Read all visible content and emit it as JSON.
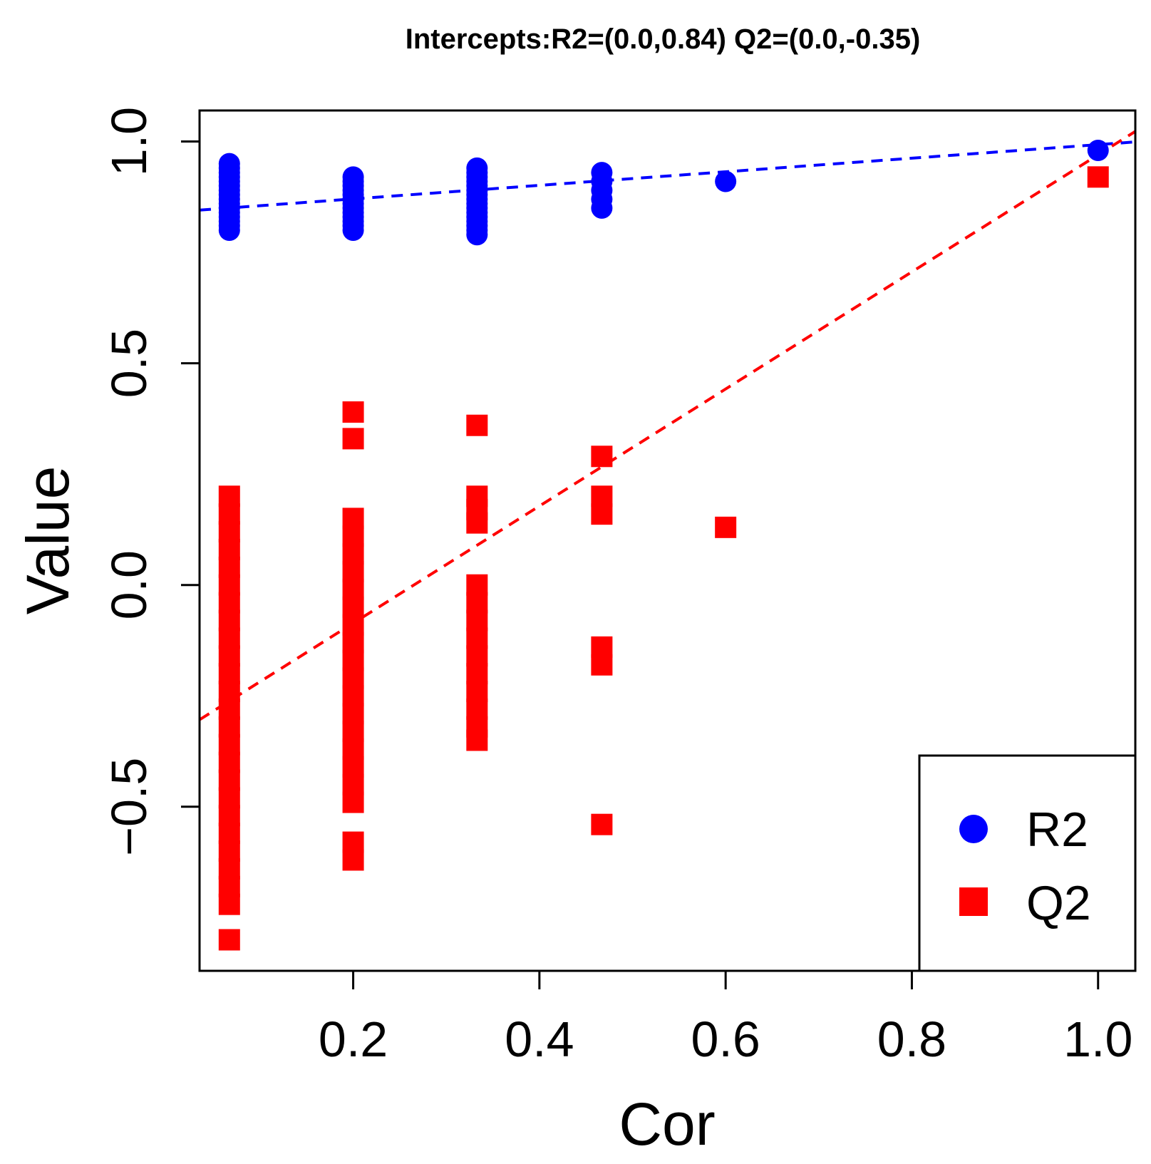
{
  "chart_data": {
    "type": "scatter",
    "title": "Intercepts:R2=(0.0,0.84) Q2=(0.0,-0.35)",
    "xlabel": "Cor",
    "ylabel": "Value",
    "xlim": [
      0.035,
      1.04
    ],
    "ylim": [
      -0.87,
      1.07
    ],
    "x_ticks": [
      {
        "value": 0.2,
        "label": "0.2"
      },
      {
        "value": 0.4,
        "label": "0.4"
      },
      {
        "value": 0.6,
        "label": "0.6"
      },
      {
        "value": 0.8,
        "label": "0.8"
      },
      {
        "value": 1.0,
        "label": "1.0"
      }
    ],
    "y_ticks": [
      {
        "value": -0.5,
        "label": "−0.5"
      },
      {
        "value": 0.0,
        "label": "0.0"
      },
      {
        "value": 0.5,
        "label": "0.5"
      },
      {
        "value": 1.0,
        "label": "1.0"
      }
    ],
    "grid": false,
    "legend_position": "bottom-right",
    "series": [
      {
        "name": "R2",
        "marker": "circle",
        "color": "#0000ff",
        "points": [
          {
            "x": 0.067,
            "y": 0.8
          },
          {
            "x": 0.067,
            "y": 0.81
          },
          {
            "x": 0.067,
            "y": 0.82
          },
          {
            "x": 0.067,
            "y": 0.83
          },
          {
            "x": 0.067,
            "y": 0.84
          },
          {
            "x": 0.067,
            "y": 0.85
          },
          {
            "x": 0.067,
            "y": 0.86
          },
          {
            "x": 0.067,
            "y": 0.87
          },
          {
            "x": 0.067,
            "y": 0.88
          },
          {
            "x": 0.067,
            "y": 0.89
          },
          {
            "x": 0.067,
            "y": 0.9
          },
          {
            "x": 0.067,
            "y": 0.91
          },
          {
            "x": 0.067,
            "y": 0.92
          },
          {
            "x": 0.067,
            "y": 0.93
          },
          {
            "x": 0.067,
            "y": 0.94
          },
          {
            "x": 0.067,
            "y": 0.95
          },
          {
            "x": 0.2,
            "y": 0.8
          },
          {
            "x": 0.2,
            "y": 0.81
          },
          {
            "x": 0.2,
            "y": 0.82
          },
          {
            "x": 0.2,
            "y": 0.83
          },
          {
            "x": 0.2,
            "y": 0.84
          },
          {
            "x": 0.2,
            "y": 0.85
          },
          {
            "x": 0.2,
            "y": 0.86
          },
          {
            "x": 0.2,
            "y": 0.87
          },
          {
            "x": 0.2,
            "y": 0.88
          },
          {
            "x": 0.2,
            "y": 0.89
          },
          {
            "x": 0.2,
            "y": 0.9
          },
          {
            "x": 0.2,
            "y": 0.91
          },
          {
            "x": 0.2,
            "y": 0.92
          },
          {
            "x": 0.333,
            "y": 0.79
          },
          {
            "x": 0.333,
            "y": 0.8
          },
          {
            "x": 0.333,
            "y": 0.81
          },
          {
            "x": 0.333,
            "y": 0.82
          },
          {
            "x": 0.333,
            "y": 0.83
          },
          {
            "x": 0.333,
            "y": 0.84
          },
          {
            "x": 0.333,
            "y": 0.85
          },
          {
            "x": 0.333,
            "y": 0.86
          },
          {
            "x": 0.333,
            "y": 0.87
          },
          {
            "x": 0.333,
            "y": 0.88
          },
          {
            "x": 0.333,
            "y": 0.89
          },
          {
            "x": 0.333,
            "y": 0.9
          },
          {
            "x": 0.333,
            "y": 0.91
          },
          {
            "x": 0.333,
            "y": 0.92
          },
          {
            "x": 0.333,
            "y": 0.93
          },
          {
            "x": 0.333,
            "y": 0.94
          },
          {
            "x": 0.467,
            "y": 0.85
          },
          {
            "x": 0.467,
            "y": 0.87
          },
          {
            "x": 0.467,
            "y": 0.89
          },
          {
            "x": 0.467,
            "y": 0.91
          },
          {
            "x": 0.467,
            "y": 0.93
          },
          {
            "x": 0.6,
            "y": 0.91
          },
          {
            "x": 1.0,
            "y": 0.98
          }
        ]
      },
      {
        "name": "Q2",
        "marker": "square",
        "color": "#ff0000",
        "points": [
          {
            "x": 0.067,
            "y": 0.2
          },
          {
            "x": 0.067,
            "y": 0.16
          },
          {
            "x": 0.067,
            "y": 0.12
          },
          {
            "x": 0.067,
            "y": 0.08
          },
          {
            "x": 0.067,
            "y": 0.04
          },
          {
            "x": 0.067,
            "y": 0.0
          },
          {
            "x": 0.067,
            "y": -0.04
          },
          {
            "x": 0.067,
            "y": -0.08
          },
          {
            "x": 0.067,
            "y": -0.12
          },
          {
            "x": 0.067,
            "y": -0.16
          },
          {
            "x": 0.067,
            "y": -0.2
          },
          {
            "x": 0.067,
            "y": -0.24
          },
          {
            "x": 0.067,
            "y": -0.28
          },
          {
            "x": 0.067,
            "y": -0.32
          },
          {
            "x": 0.067,
            "y": -0.36
          },
          {
            "x": 0.067,
            "y": -0.4
          },
          {
            "x": 0.067,
            "y": -0.44
          },
          {
            "x": 0.067,
            "y": -0.48
          },
          {
            "x": 0.067,
            "y": -0.52
          },
          {
            "x": 0.067,
            "y": -0.56
          },
          {
            "x": 0.067,
            "y": -0.6
          },
          {
            "x": 0.067,
            "y": -0.64
          },
          {
            "x": 0.067,
            "y": -0.68
          },
          {
            "x": 0.067,
            "y": -0.72
          },
          {
            "x": 0.067,
            "y": -0.8
          },
          {
            "x": 0.2,
            "y": 0.39
          },
          {
            "x": 0.2,
            "y": 0.33
          },
          {
            "x": 0.2,
            "y": 0.15
          },
          {
            "x": 0.2,
            "y": 0.11
          },
          {
            "x": 0.2,
            "y": 0.07
          },
          {
            "x": 0.2,
            "y": 0.03
          },
          {
            "x": 0.2,
            "y": -0.01
          },
          {
            "x": 0.2,
            "y": -0.05
          },
          {
            "x": 0.2,
            "y": -0.09
          },
          {
            "x": 0.2,
            "y": -0.13
          },
          {
            "x": 0.2,
            "y": -0.17
          },
          {
            "x": 0.2,
            "y": -0.21
          },
          {
            "x": 0.2,
            "y": -0.25
          },
          {
            "x": 0.2,
            "y": -0.29
          },
          {
            "x": 0.2,
            "y": -0.33
          },
          {
            "x": 0.2,
            "y": -0.37
          },
          {
            "x": 0.2,
            "y": -0.41
          },
          {
            "x": 0.2,
            "y": -0.45
          },
          {
            "x": 0.2,
            "y": -0.49
          },
          {
            "x": 0.2,
            "y": -0.58
          },
          {
            "x": 0.2,
            "y": -0.62
          },
          {
            "x": 0.333,
            "y": 0.36
          },
          {
            "x": 0.333,
            "y": 0.2
          },
          {
            "x": 0.333,
            "y": 0.17
          },
          {
            "x": 0.333,
            "y": 0.14
          },
          {
            "x": 0.333,
            "y": 0.0
          },
          {
            "x": 0.333,
            "y": -0.04
          },
          {
            "x": 0.333,
            "y": -0.08
          },
          {
            "x": 0.333,
            "y": -0.12
          },
          {
            "x": 0.333,
            "y": -0.16
          },
          {
            "x": 0.333,
            "y": -0.2
          },
          {
            "x": 0.333,
            "y": -0.24
          },
          {
            "x": 0.333,
            "y": -0.28
          },
          {
            "x": 0.333,
            "y": -0.32
          },
          {
            "x": 0.333,
            "y": -0.35
          },
          {
            "x": 0.467,
            "y": 0.29
          },
          {
            "x": 0.467,
            "y": 0.2
          },
          {
            "x": 0.467,
            "y": 0.16
          },
          {
            "x": 0.467,
            "y": -0.14
          },
          {
            "x": 0.467,
            "y": -0.18
          },
          {
            "x": 0.467,
            "y": -0.54
          },
          {
            "x": 0.6,
            "y": 0.13
          },
          {
            "x": 1.0,
            "y": 0.92
          }
        ]
      }
    ],
    "regression_lines": [
      {
        "series": "R2",
        "color": "#0000ff",
        "intercept": 0.84,
        "slope": 0.153
      },
      {
        "series": "Q2",
        "color": "#ff0000",
        "intercept": -0.35,
        "slope": 1.32
      }
    ]
  }
}
